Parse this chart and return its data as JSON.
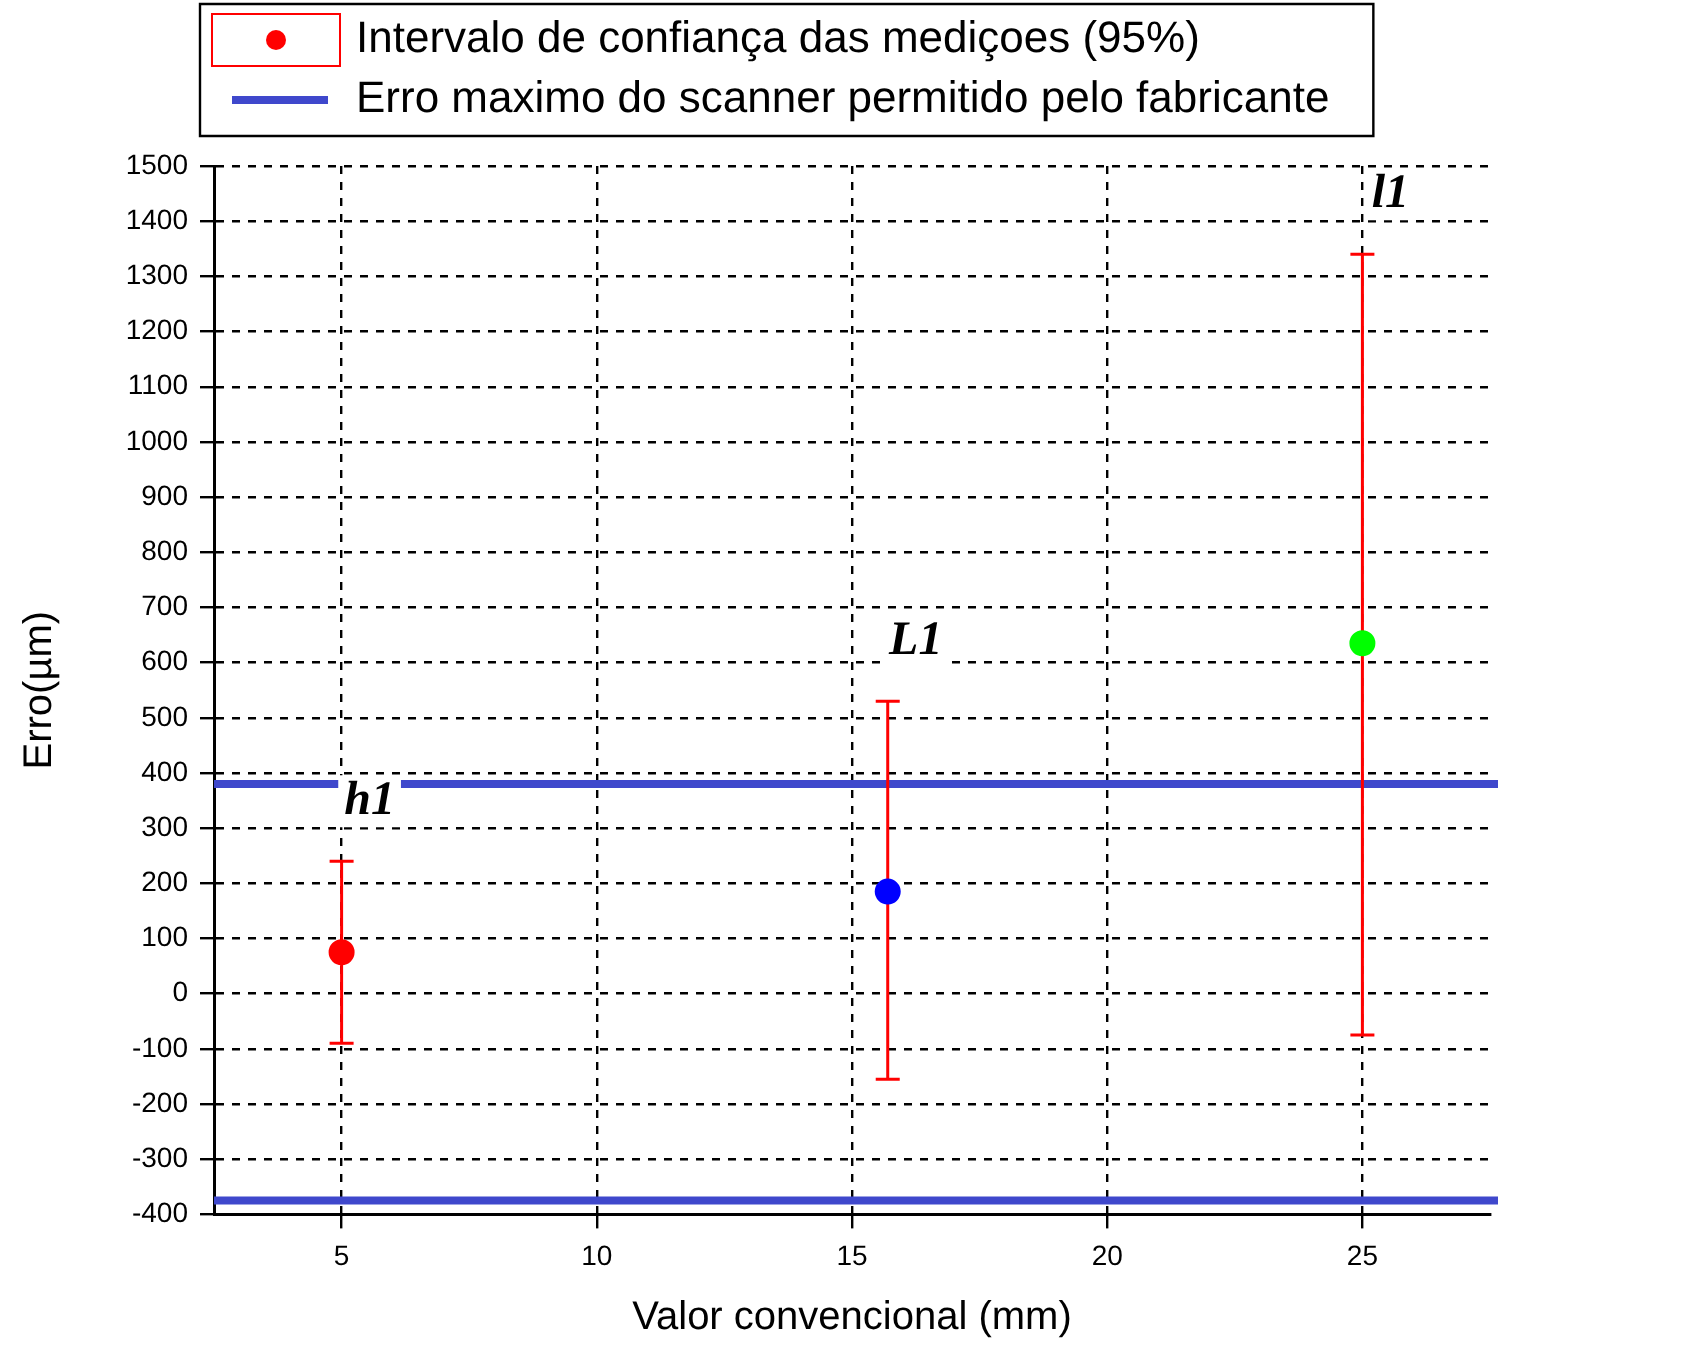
{
  "chart_data": {
    "type": "scatter",
    "xlabel": "Valor convencional (mm)",
    "ylabel": "Erro(µm)",
    "series": [
      {
        "name": "Intervalo de confiança das mediçoes (95%)",
        "color": "#ff0000",
        "colors": [
          "#ff0000",
          "#0000ff",
          "#00ff00"
        ],
        "x": [
          5,
          15.7,
          25
        ],
        "values": [
          75,
          185,
          635
        ],
        "errors": [
          [
            -90,
            240
          ],
          [
            -155,
            530
          ],
          [
            -75,
            1340
          ]
        ]
      }
    ],
    "annotations": [
      "h1",
      "L1",
      "l1"
    ],
    "ref_lines": [
      {
        "axis": "y",
        "value": 380,
        "label": "Erro maximo do scanner permitido pelo fabricante",
        "color": "#3f48cc"
      },
      {
        "axis": "y",
        "value": -375,
        "label": null,
        "color": "#3f48cc"
      }
    ],
    "xlim": [
      2.5,
      27.5
    ],
    "xticks": [
      5,
      10,
      15,
      20,
      25
    ],
    "ylim": [
      -400,
      1500
    ],
    "yticks": [
      -400,
      -300,
      -200,
      -100,
      0,
      100,
      200,
      300,
      400,
      500,
      600,
      700,
      800,
      900,
      1000,
      1100,
      1200,
      1300,
      1400,
      1500
    ],
    "grid": true,
    "legend": "top",
    "marker": "circle"
  }
}
